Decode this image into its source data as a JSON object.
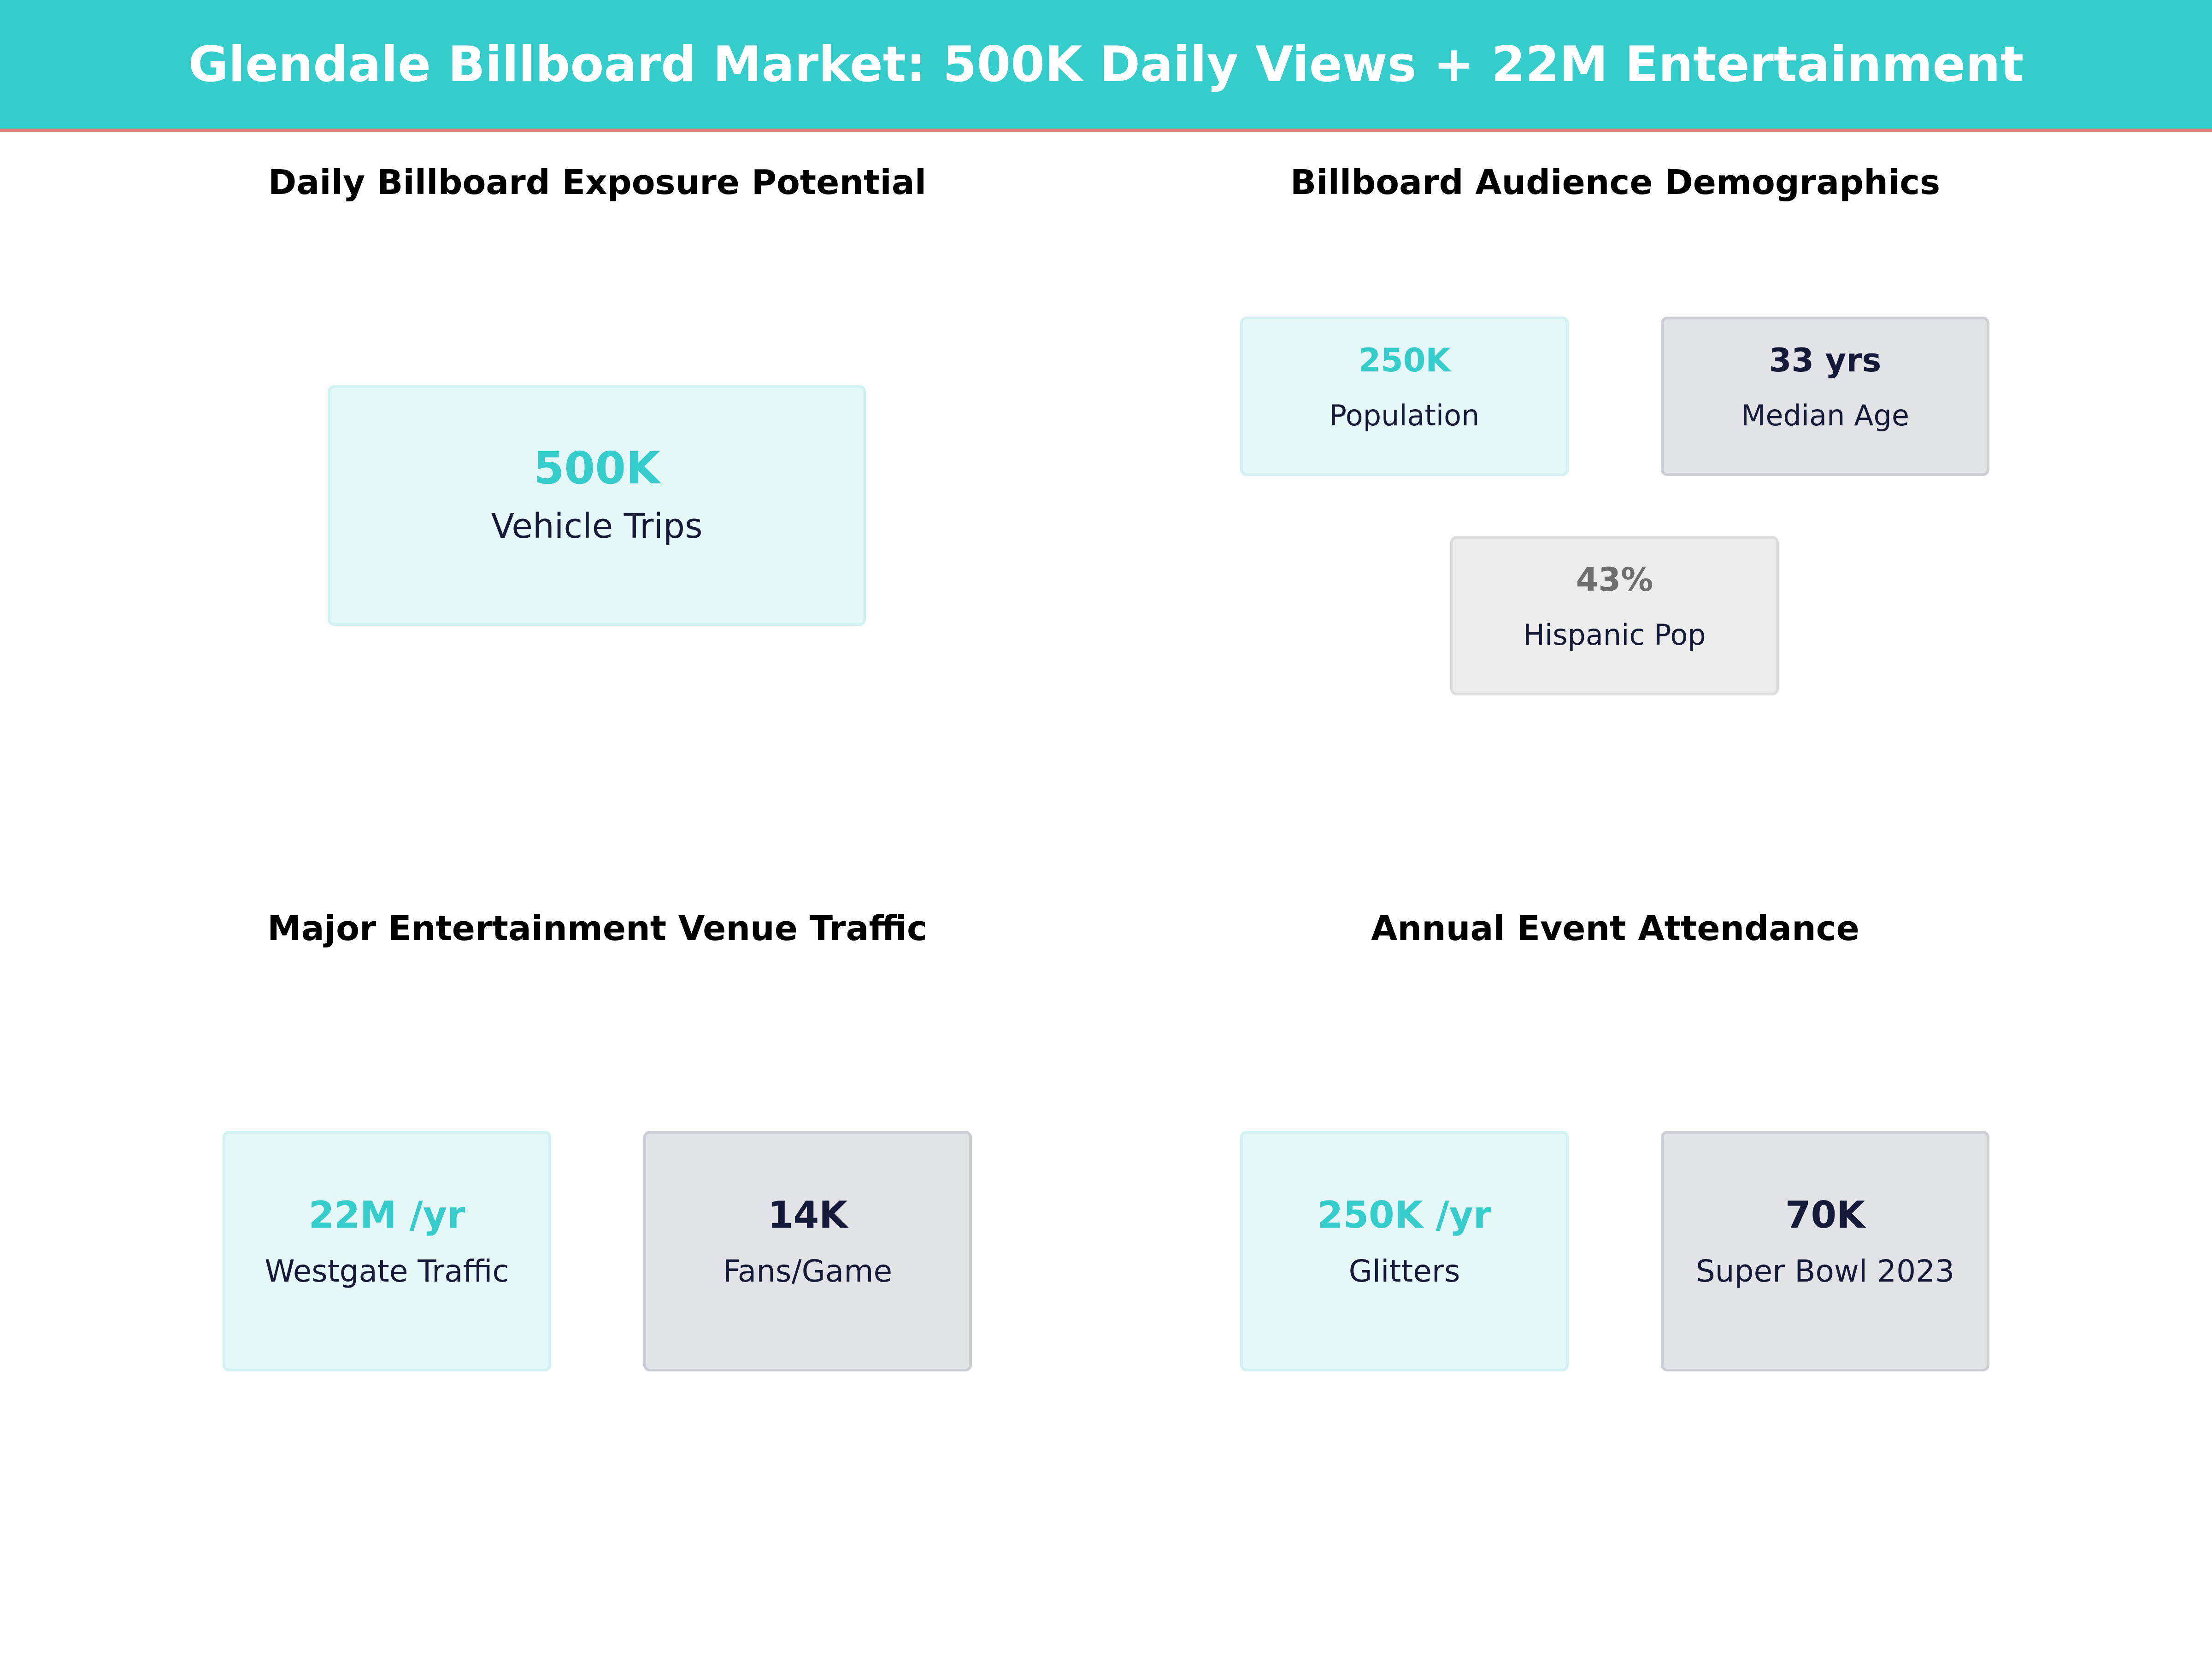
{
  "header": {
    "title": "Glendale Billboard Market: 500K Daily Views + 22M Entertainment"
  },
  "panels": {
    "exposure": {
      "title": "Daily Billboard Exposure Potential",
      "cards": [
        {
          "value": "500K",
          "label": "Vehicle Trips"
        }
      ]
    },
    "demographics": {
      "title": "Billboard Audience Demographics",
      "cards": [
        {
          "value": "250K",
          "label": "Population"
        },
        {
          "value": "33 yrs",
          "label": "Median Age"
        },
        {
          "value": "43%",
          "label": "Hispanic Pop"
        }
      ]
    },
    "venue": {
      "title": "Major Entertainment Venue Traffic",
      "cards": [
        {
          "value": "22M /yr",
          "label": "Westgate Traffic"
        },
        {
          "value": "14K",
          "label": "Fans/Game"
        }
      ]
    },
    "events": {
      "title": "Annual Event Attendance",
      "cards": [
        {
          "value": "250K /yr",
          "label": "Glitters"
        },
        {
          "value": "70K",
          "label": "Super Bowl 2023"
        }
      ]
    }
  },
  "colors": {
    "header_bg": "#35cccc",
    "header_border": "#e07c7c",
    "teal_accent": "#35cccc",
    "navy_accent": "#161a39",
    "gray_accent": "#6e6e6e"
  }
}
